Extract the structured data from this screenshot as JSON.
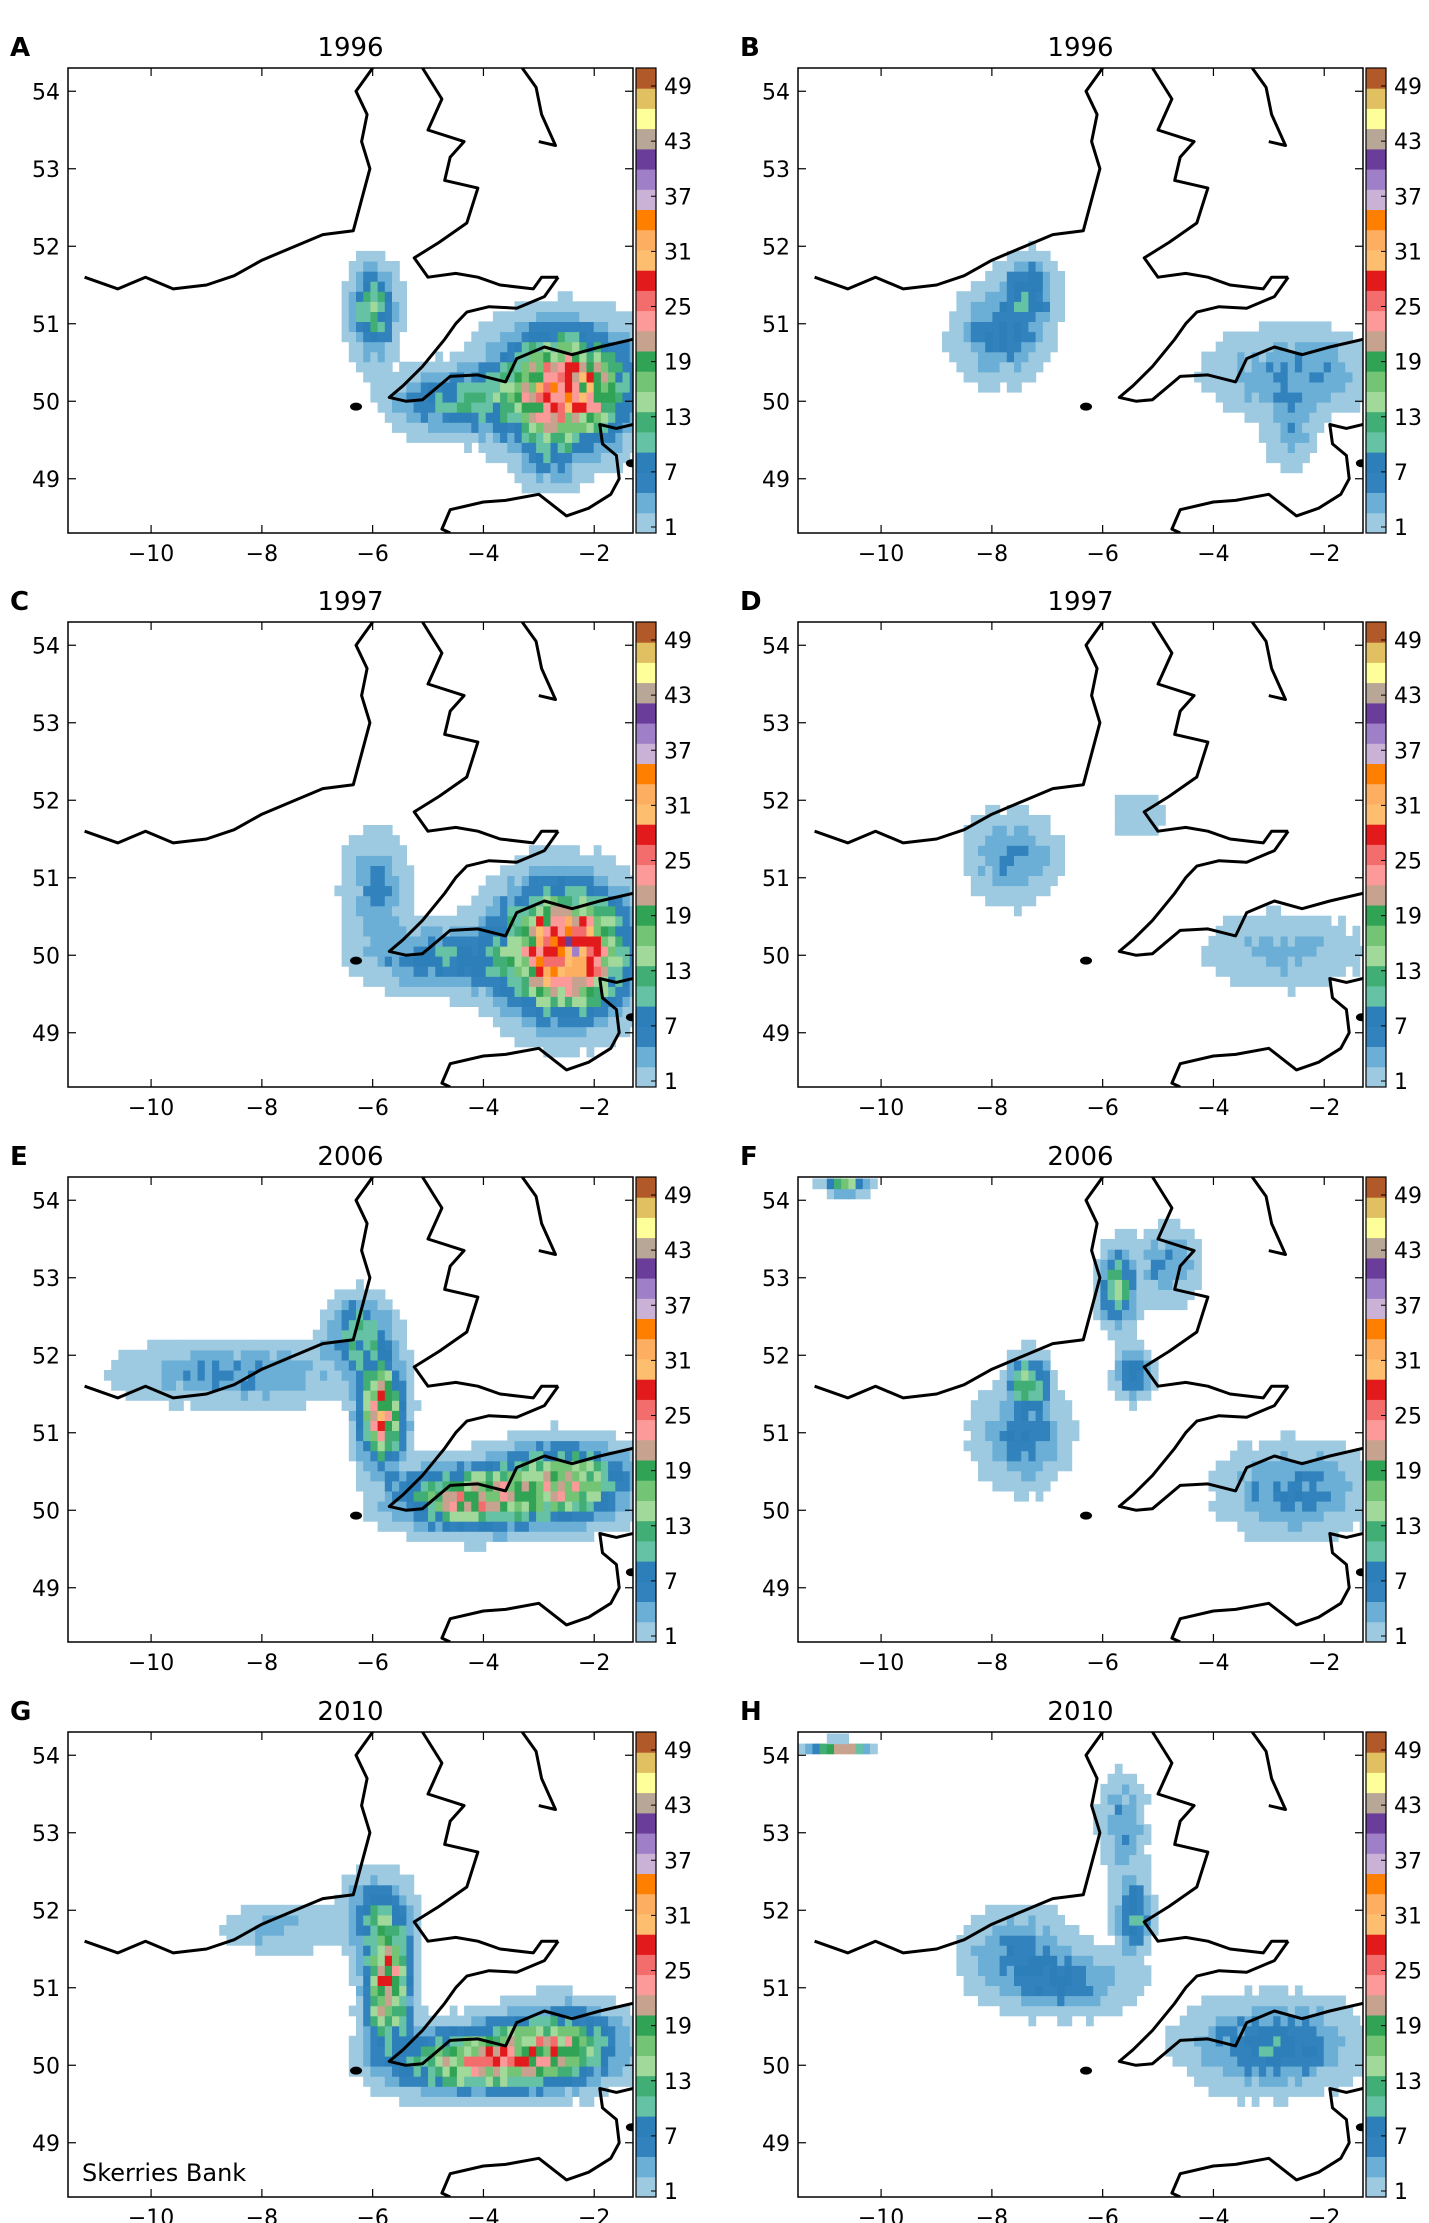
{
  "colorbar": {
    "tick_labels": [
      "1",
      "7",
      "13",
      "19",
      "25",
      "31",
      "37",
      "43",
      "49"
    ],
    "colors": [
      "#9ecae1",
      "#6baed6",
      "#3182bd",
      "#2c7fb8",
      "#66c2a4",
      "#41ae76",
      "#a1d99b",
      "#74c476",
      "#31a354",
      "#c7a28e",
      "#fb9a99",
      "#f46d6d",
      "#e31a1c",
      "#fdbf6f",
      "#fdae61",
      "#ff7f00",
      "#cab2d6",
      "#9e7fc8",
      "#6a3d9a",
      "#b8a696",
      "#ffff99",
      "#e0c060",
      "#b15928"
    ]
  },
  "annotation": {
    "text": "Skerries Bank"
  },
  "chart_data": [
    {
      "panel_letter": "A",
      "type": "heatmap",
      "title": "1996",
      "xlim": [
        -11.5,
        -1.3
      ],
      "ylim": [
        48.3,
        54.3
      ],
      "xticks": [
        -10,
        -8,
        -6,
        -4,
        -2
      ],
      "yticks": [
        49,
        50,
        51,
        52,
        53,
        54
      ],
      "hotspots": [
        {
          "lon": -2.6,
          "lat": 50.1,
          "peak": 30,
          "sx": 0.75,
          "sy": 0.45
        },
        {
          "lon": -4.6,
          "lat": 49.95,
          "peak": 10,
          "sx": 0.7,
          "sy": 0.25
        },
        {
          "lon": -6.05,
          "lat": 51.1,
          "peak": 14,
          "sx": 0.25,
          "sy": 0.35
        },
        {
          "lon": -2.9,
          "lat": 49.3,
          "peak": 5,
          "sx": 0.35,
          "sy": 0.3
        }
      ]
    },
    {
      "panel_letter": "B",
      "type": "heatmap",
      "title": "1996",
      "xlim": [
        -11.5,
        -1.3
      ],
      "ylim": [
        48.3,
        54.3
      ],
      "xticks": [
        -10,
        -8,
        -6,
        -4,
        -2
      ],
      "yticks": [
        49,
        50,
        51,
        52,
        53,
        54
      ],
      "hotspots": [
        {
          "lon": -7.4,
          "lat": 51.4,
          "peak": 9,
          "sx": 0.3,
          "sy": 0.25
        },
        {
          "lon": -7.9,
          "lat": 50.8,
          "peak": 8,
          "sx": 0.5,
          "sy": 0.35
        },
        {
          "lon": -2.6,
          "lat": 50.3,
          "peak": 6,
          "sx": 0.9,
          "sy": 0.35
        },
        {
          "lon": -2.7,
          "lat": 49.5,
          "peak": 4,
          "sx": 0.3,
          "sy": 0.3
        }
      ]
    },
    {
      "panel_letter": "C",
      "type": "heatmap",
      "title": "1997",
      "xlim": [
        -11.5,
        -1.3
      ],
      "ylim": [
        48.3,
        54.3
      ],
      "xticks": [
        -10,
        -8,
        -6,
        -4,
        -2
      ],
      "yticks": [
        49,
        50,
        51,
        52,
        53,
        54
      ],
      "hotspots": [
        {
          "lon": -2.6,
          "lat": 50.0,
          "peak": 36,
          "sx": 0.7,
          "sy": 0.5
        },
        {
          "lon": -4.8,
          "lat": 49.9,
          "peak": 9,
          "sx": 0.8,
          "sy": 0.25
        },
        {
          "lon": -6.0,
          "lat": 50.8,
          "peak": 6,
          "sx": 0.35,
          "sy": 0.45
        }
      ]
    },
    {
      "panel_letter": "D",
      "type": "heatmap",
      "title": "1997",
      "xlim": [
        -11.5,
        -1.3
      ],
      "ylim": [
        48.3,
        54.3
      ],
      "xticks": [
        -10,
        -8,
        -6,
        -4,
        -2
      ],
      "yticks": [
        49,
        50,
        51,
        52,
        53,
        54
      ],
      "hotspots": [
        {
          "lon": -7.7,
          "lat": 51.2,
          "peak": 6,
          "sx": 0.5,
          "sy": 0.35
        },
        {
          "lon": -2.8,
          "lat": 50.0,
          "peak": 4,
          "sx": 0.9,
          "sy": 0.3
        },
        {
          "lon": -5.4,
          "lat": 51.75,
          "peak": 3,
          "sx": 0.3,
          "sy": 0.2
        }
      ]
    },
    {
      "panel_letter": "E",
      "type": "heatmap",
      "title": "2006",
      "xlim": [
        -11.5,
        -1.3
      ],
      "ylim": [
        48.3,
        54.3
      ],
      "xticks": [
        -10,
        -8,
        -6,
        -4,
        -2
      ],
      "yticks": [
        49,
        50,
        51,
        52,
        53,
        54
      ],
      "hotspots": [
        {
          "lon": -5.9,
          "lat": 51.2,
          "peak": 26,
          "sx": 0.25,
          "sy": 0.4
        },
        {
          "lon": -6.3,
          "lat": 52.2,
          "peak": 12,
          "sx": 0.35,
          "sy": 0.3
        },
        {
          "lon": -8.6,
          "lat": 51.7,
          "peak": 6,
          "sx": 1.2,
          "sy": 0.25
        },
        {
          "lon": -4.3,
          "lat": 50.1,
          "peak": 22,
          "sx": 0.8,
          "sy": 0.25
        },
        {
          "lon": -2.6,
          "lat": 50.3,
          "peak": 20,
          "sx": 0.7,
          "sy": 0.3
        }
      ]
    },
    {
      "panel_letter": "F",
      "type": "heatmap",
      "title": "2006",
      "xlim": [
        -11.5,
        -1.3
      ],
      "ylim": [
        48.3,
        54.3
      ],
      "xticks": [
        -10,
        -8,
        -6,
        -4,
        -2
      ],
      "yticks": [
        49,
        50,
        51,
        52,
        53,
        54
      ],
      "hotspots": [
        {
          "lon": -7.4,
          "lat": 51.6,
          "peak": 16,
          "sx": 0.2,
          "sy": 0.2
        },
        {
          "lon": -7.5,
          "lat": 50.9,
          "peak": 7,
          "sx": 0.5,
          "sy": 0.4
        },
        {
          "lon": -5.8,
          "lat": 52.8,
          "peak": 14,
          "sx": 0.2,
          "sy": 0.3
        },
        {
          "lon": -5.5,
          "lat": 51.7,
          "peak": 10,
          "sx": 0.2,
          "sy": 0.2
        },
        {
          "lon": -4.9,
          "lat": 53.1,
          "peak": 6,
          "sx": 0.35,
          "sy": 0.3
        },
        {
          "lon": -2.6,
          "lat": 50.2,
          "peak": 7,
          "sx": 0.8,
          "sy": 0.35
        },
        {
          "lon": -10.7,
          "lat": 54.1,
          "peak": 34,
          "sx": 0.25,
          "sy": 0.04
        }
      ]
    },
    {
      "panel_letter": "G",
      "type": "heatmap",
      "title": "2010",
      "xlim": [
        -11.5,
        -1.3
      ],
      "ylim": [
        48.3,
        54.3
      ],
      "xticks": [
        -10,
        -8,
        -6,
        -4,
        -2
      ],
      "yticks": [
        49,
        50,
        51,
        52,
        53,
        54
      ],
      "hotspots": [
        {
          "lon": -5.8,
          "lat": 51.0,
          "peak": 26,
          "sx": 0.25,
          "sy": 0.5
        },
        {
          "lon": -6.0,
          "lat": 51.9,
          "peak": 8,
          "sx": 0.4,
          "sy": 0.3
        },
        {
          "lon": -4.2,
          "lat": 50.0,
          "peak": 22,
          "sx": 0.9,
          "sy": 0.25
        },
        {
          "lon": -2.7,
          "lat": 50.2,
          "peak": 18,
          "sx": 0.7,
          "sy": 0.3
        },
        {
          "lon": -7.8,
          "lat": 51.7,
          "peak": 4,
          "sx": 0.6,
          "sy": 0.2
        }
      ]
    },
    {
      "panel_letter": "H",
      "type": "heatmap",
      "title": "2010",
      "xlim": [
        -11.5,
        -1.3
      ],
      "ylim": [
        48.3,
        54.3
      ],
      "xticks": [
        -10,
        -8,
        -6,
        -4,
        -2
      ],
      "yticks": [
        49,
        50,
        51,
        52,
        53,
        54
      ],
      "hotspots": [
        {
          "lon": -7.6,
          "lat": 51.4,
          "peak": 6,
          "sx": 0.6,
          "sy": 0.35
        },
        {
          "lon": -6.7,
          "lat": 51.0,
          "peak": 7,
          "sx": 0.7,
          "sy": 0.25
        },
        {
          "lon": -5.5,
          "lat": 51.9,
          "peak": 10,
          "sx": 0.2,
          "sy": 0.3
        },
        {
          "lon": -5.7,
          "lat": 53.0,
          "peak": 6,
          "sx": 0.25,
          "sy": 0.4
        },
        {
          "lon": -3.0,
          "lat": 50.2,
          "peak": 9,
          "sx": 0.9,
          "sy": 0.35
        },
        {
          "lon": -10.8,
          "lat": 54.05,
          "peak": 30,
          "sx": 0.3,
          "sy": 0.04
        }
      ]
    }
  ]
}
